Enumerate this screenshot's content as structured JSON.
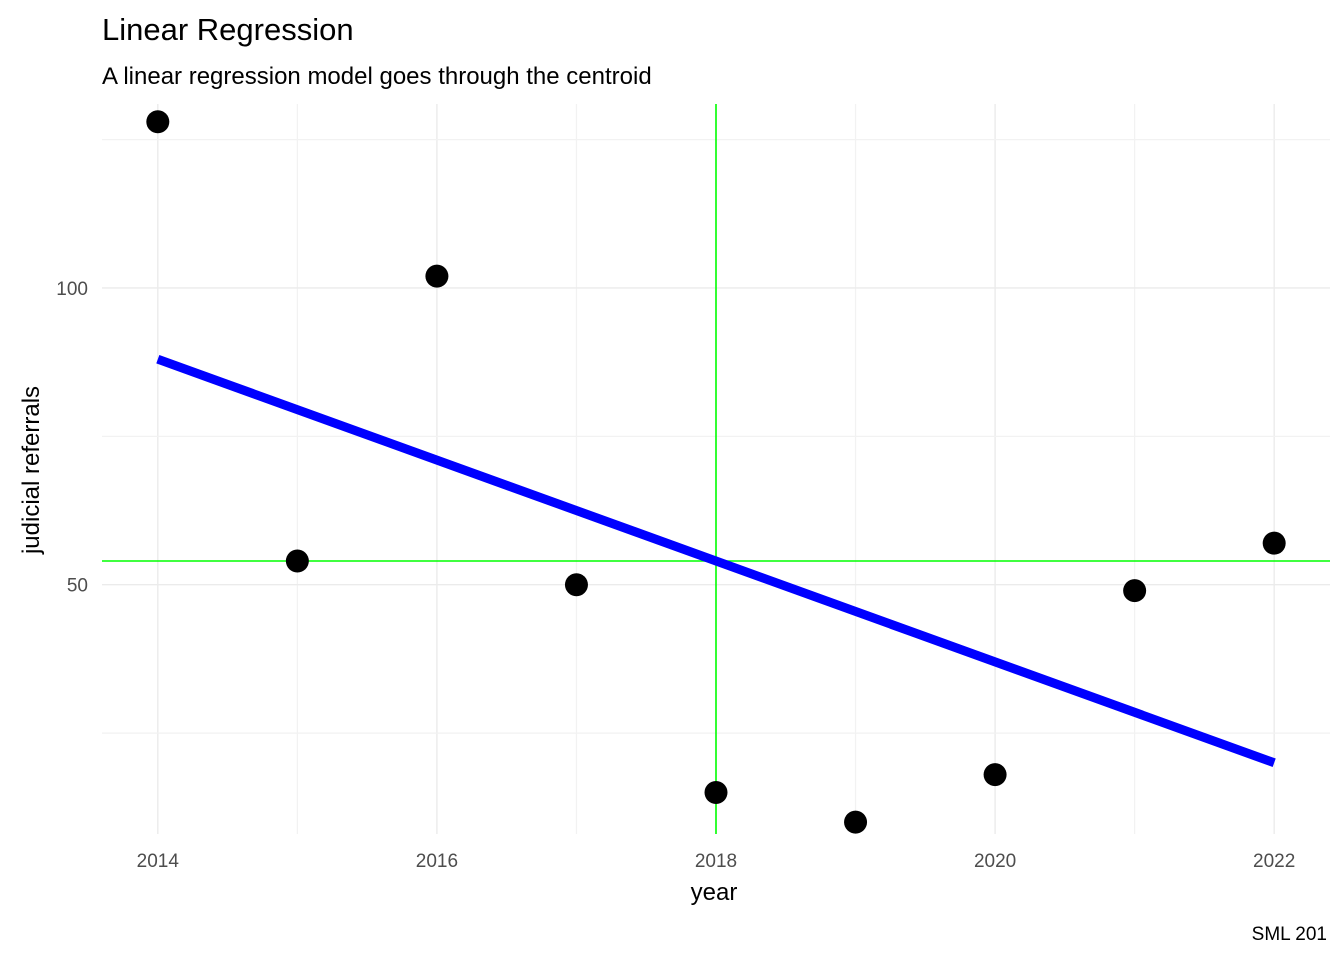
{
  "chart_data": {
    "type": "scatter",
    "title": "Linear Regression",
    "subtitle": "A linear regression model goes through the centroid",
    "xlabel": "year",
    "ylabel": "judicial referrals",
    "caption": "SML 201",
    "xlim": [
      2013.6,
      2022.4
    ],
    "ylim": [
      8,
      131
    ],
    "x_ticks": [
      2014,
      2016,
      2018,
      2020,
      2022
    ],
    "y_ticks": [
      50,
      100
    ],
    "grid": true,
    "points": [
      {
        "x": 2014,
        "y": 128
      },
      {
        "x": 2015,
        "y": 54
      },
      {
        "x": 2016,
        "y": 102
      },
      {
        "x": 2017,
        "y": 50
      },
      {
        "x": 2018,
        "y": 15
      },
      {
        "x": 2019,
        "y": 10
      },
      {
        "x": 2020,
        "y": 18
      },
      {
        "x": 2021,
        "y": 49
      },
      {
        "x": 2022,
        "y": 57
      }
    ],
    "regression_line": {
      "x": [
        2014,
        2022
      ],
      "y": [
        88,
        20
      ],
      "color": "#0000ff"
    },
    "centroid": {
      "x": 2018,
      "y": 54,
      "color": "#00ff00"
    },
    "point_color": "#000000"
  }
}
